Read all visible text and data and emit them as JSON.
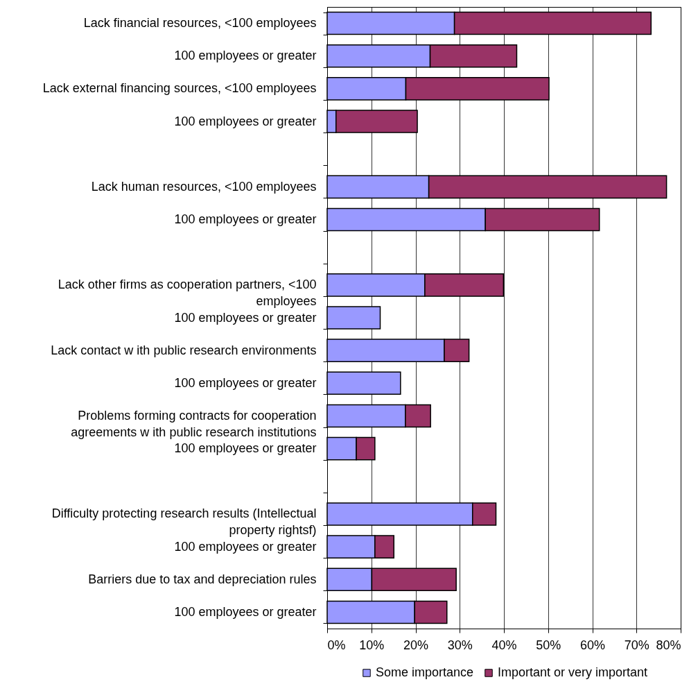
{
  "chart_data": {
    "type": "bar",
    "orientation": "horizontal",
    "stacked": true,
    "categories": [
      "Lack financial resources, <100 employees",
      "100 employees or greater",
      "Lack external financing sources, <100 employees",
      "100 employees or greater",
      null,
      "Lack human resources, <100 employees",
      "100 employees or greater",
      null,
      "Lack other firms as cooperation partners, <100 employees",
      "100 employees or greater",
      "Lack contact w ith public research environments",
      "100 employees or greater",
      "Problems forming contracts for cooperation agreements w ith public research institutions",
      "100 employees or greater",
      null,
      "Difficulty protecting research results (Intellectual property rightsf)",
      "100 employees or greater",
      "Barriers due to tax and depreciation rules",
      "100 employees or greater"
    ],
    "series": [
      {
        "name": "Some importance",
        "color": "#9999ff",
        "values": [
          28.8,
          23.3,
          17.8,
          2.0,
          null,
          23.0,
          35.8,
          null,
          22.1,
          12.0,
          26.5,
          16.6,
          17.7,
          6.6,
          null,
          32.9,
          10.8,
          10.1,
          19.8
        ]
      },
      {
        "name": "Important or very important",
        "color": "#993366",
        "values": [
          44.5,
          19.6,
          32.4,
          18.4,
          null,
          53.8,
          25.8,
          null,
          17.8,
          null,
          5.6,
          null,
          5.7,
          4.2,
          null,
          5.3,
          4.3,
          19.1,
          7.3
        ]
      }
    ],
    "xlim": [
      0,
      80
    ],
    "xticks": [
      {
        "value": 0,
        "label": "0%"
      },
      {
        "value": 10,
        "label": "10%"
      },
      {
        "value": 20,
        "label": "20%"
      },
      {
        "value": 30,
        "label": "30%"
      },
      {
        "value": 40,
        "label": "40%"
      },
      {
        "value": 50,
        "label": "50%"
      },
      {
        "value": 60,
        "label": "60%"
      },
      {
        "value": 70,
        "label": "70%"
      },
      {
        "value": 80,
        "label": "80%"
      }
    ],
    "grid": "x",
    "legend": "bottom"
  }
}
